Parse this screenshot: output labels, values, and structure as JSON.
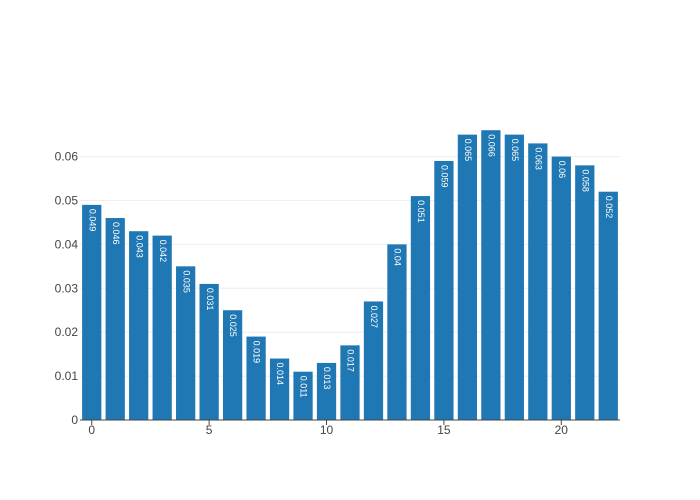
{
  "chart_data": {
    "type": "bar",
    "x": [
      0,
      1,
      2,
      3,
      4,
      5,
      6,
      7,
      8,
      9,
      10,
      11,
      12,
      13,
      14,
      15,
      16,
      17,
      18,
      19,
      20,
      21,
      22
    ],
    "values": [
      0.049,
      0.046,
      0.043,
      0.042,
      0.035,
      0.031,
      0.025,
      0.019,
      0.014,
      0.011,
      0.013,
      0.017,
      0.027,
      0.04,
      0.051,
      0.059,
      0.065,
      0.066,
      0.065,
      0.063,
      0.06,
      0.058,
      0.052
    ],
    "data_labels": [
      "0.049",
      "0.046",
      "0.043",
      "0.042",
      "0.035",
      "0.031",
      "0.025",
      "0.019",
      "0.014",
      "0.011",
      "0.013",
      "0.017",
      "0.027",
      "0.04",
      "0.051",
      "0.059",
      "0.065",
      "0.066",
      "0.065",
      "0.063",
      "0.06",
      "0.058",
      "0.052"
    ],
    "x_ticks": [
      0,
      5,
      10,
      15,
      20
    ],
    "x_tick_labels": [
      "0",
      "5",
      "10",
      "15",
      "20"
    ],
    "y_ticks": [
      0,
      0.01,
      0.02,
      0.03,
      0.04,
      0.05,
      0.06
    ],
    "y_tick_labels": [
      "0",
      "0.01",
      "0.02",
      "0.03",
      "0.04",
      "0.05",
      "0.06"
    ],
    "xlim": [
      -0.5,
      22.5
    ],
    "ylim": [
      0,
      0.06947
    ],
    "grid": true,
    "bar_color": "#1f77b4",
    "title": "",
    "xlabel": "",
    "ylabel": ""
  }
}
